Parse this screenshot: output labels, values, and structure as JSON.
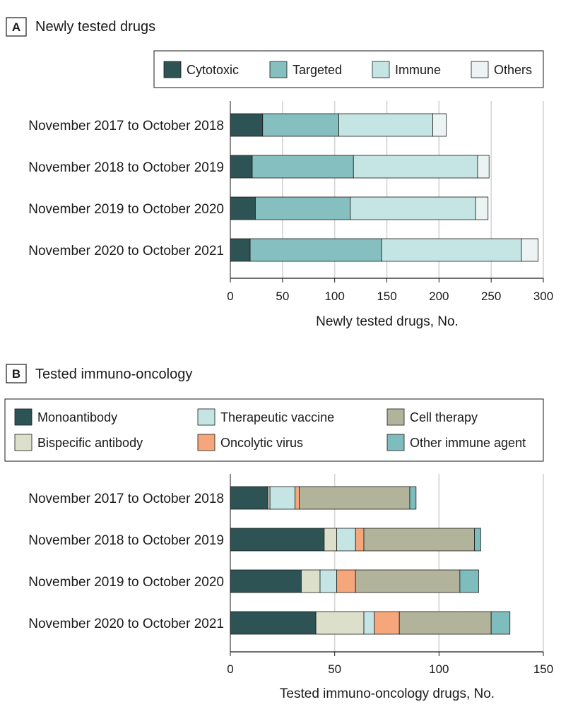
{
  "chart_data": [
    {
      "type": "bar",
      "orientation": "horizontal",
      "stacked": true,
      "panel_letter": "A",
      "title": "Newly tested drugs",
      "xlabel": "Newly tested drugs, No.",
      "ylabel": "",
      "xlim": [
        0,
        300
      ],
      "xticks": [
        0,
        50,
        100,
        150,
        200,
        250,
        300
      ],
      "grid": true,
      "legend_position": "top",
      "categories": [
        "November 2017 to October 2018",
        "November 2018 to October 2019",
        "November 2019 to October 2020",
        "November 2020 to October 2021"
      ],
      "series": [
        {
          "name": "Cytotoxic",
          "color": "#2e5354",
          "values": [
            31,
            21,
            24,
            19
          ]
        },
        {
          "name": "Targeted",
          "color": "#86bfbf",
          "values": [
            73,
            97,
            91,
            126
          ]
        },
        {
          "name": "Immune",
          "color": "#c5e5e5",
          "values": [
            90,
            119,
            120,
            134
          ]
        },
        {
          "name": "Others",
          "color": "#ebf3f3",
          "values": [
            13,
            11,
            12,
            16
          ]
        }
      ]
    },
    {
      "type": "bar",
      "orientation": "horizontal",
      "stacked": true,
      "panel_letter": "B",
      "title": "Tested immuno-oncology",
      "xlabel": "Tested immuno-oncology drugs, No.",
      "ylabel": "",
      "xlim": [
        0,
        150
      ],
      "xticks": [
        0,
        50,
        100,
        150
      ],
      "grid": true,
      "legend_position": "top",
      "categories": [
        "November 2017 to October 2018",
        "November 2018 to October 2019",
        "November 2019 to October 2020",
        "November 2020 to October 2021"
      ],
      "series": [
        {
          "name": "Monoantibody",
          "color": "#2e5354",
          "values": [
            18,
            45,
            34,
            41
          ]
        },
        {
          "name": "Bispecific antibody",
          "color": "#dcdfca",
          "values": [
            1,
            6,
            9,
            23
          ]
        },
        {
          "name": "Therapeutic vaccine",
          "color": "#c5e5e5",
          "values": [
            12,
            9,
            8,
            5
          ]
        },
        {
          "name": "Oncolytic virus",
          "color": "#f5a77b",
          "values": [
            2,
            4,
            9,
            12
          ]
        },
        {
          "name": "Cell therapy",
          "color": "#b2b39b",
          "values": [
            53,
            53,
            50,
            44
          ]
        },
        {
          "name": "Other immune agent",
          "color": "#7ebcbd",
          "values": [
            3,
            3,
            9,
            9
          ]
        }
      ]
    }
  ]
}
